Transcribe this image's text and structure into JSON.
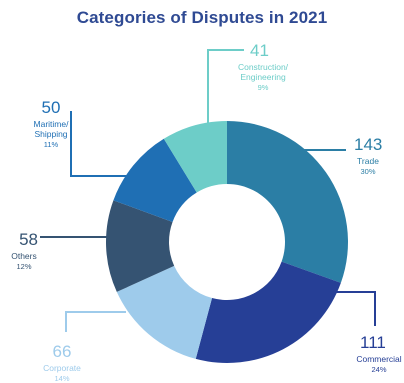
{
  "chart_data": {
    "type": "pie",
    "title": "Categories of Disputes in 2021",
    "donut": true,
    "slices": [
      {
        "name": "Trade",
        "value": 143,
        "percent": "30%",
        "color": "#2b7ea5"
      },
      {
        "name": "Commercial",
        "value": 111,
        "percent": "24%",
        "color": "#263f96"
      },
      {
        "name": "Corporate",
        "value": 66,
        "percent": "14%",
        "color": "#9ecbeb"
      },
      {
        "name": "Others",
        "value": 58,
        "percent": "12%",
        "color": "#355372"
      },
      {
        "name": "Maritime/Shipping",
        "lines": [
          "Maritime/",
          "Shipping"
        ],
        "value": 50,
        "percent": "11%",
        "color": "#1f6fb4"
      },
      {
        "name": "Construction/Engineering",
        "lines": [
          "Construction/",
          "Engineering"
        ],
        "value": 41,
        "percent": "9%",
        "color": "#6dcdc8"
      }
    ]
  }
}
